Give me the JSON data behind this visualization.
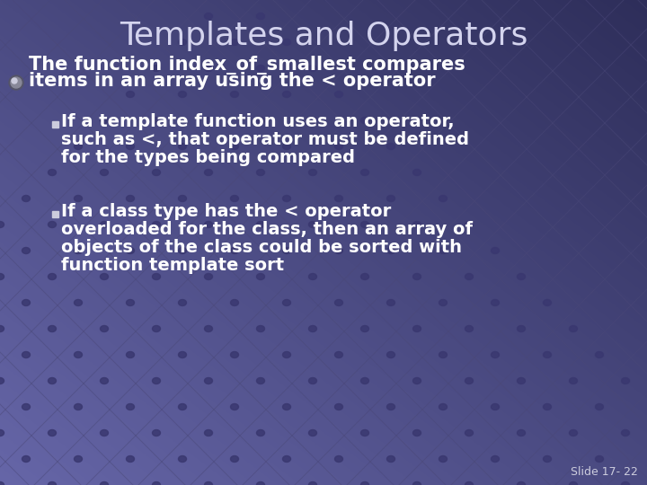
{
  "title": "Templates and Operators",
  "title_color": "#d4d4ee",
  "title_fontsize": 26,
  "bg_color_tl": "#6666a8",
  "bg_color_br": "#2e2e5a",
  "bullet_line1": "The function index_of_smallest compares",
  "bullet_line2": "items in an array using the < operator",
  "sub1_lines": [
    "If a template function uses an operator,",
    "such as <, that operator must be defined",
    "for the types being compared"
  ],
  "sub2_lines": [
    "If a class type has the < operator",
    "overloaded for the class, then an array of",
    "objects of the class could be sorted with",
    "function template sort"
  ],
  "text_color": "#ffffff",
  "slide_label": "Slide 17- 22",
  "grid_line_color": "#4a4a80",
  "grid_dot_color": "#3a3a6a",
  "main_fontsize": 15,
  "sub_fontsize": 14
}
